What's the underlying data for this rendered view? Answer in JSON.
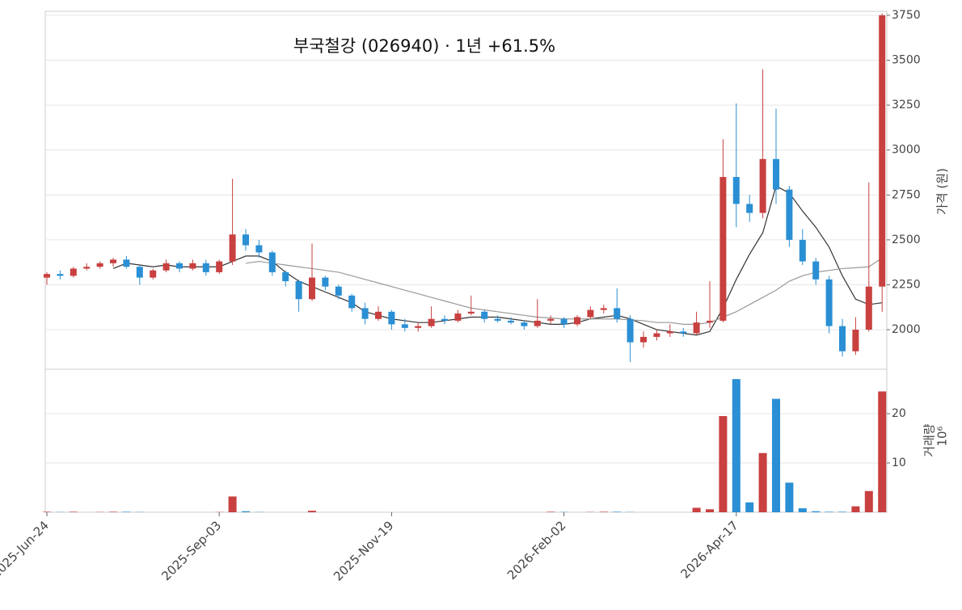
{
  "chart_data": [
    {
      "type": "candlestick",
      "title": "부국철강 (026940)  ·  1년 +61.5%",
      "ylabel": "가격 (원)",
      "categories": [
        "2025-Jun-24",
        null,
        null,
        null,
        null,
        null,
        null,
        null,
        null,
        null,
        null,
        null,
        null,
        "2025-Sep-03",
        null,
        null,
        null,
        null,
        null,
        null,
        null,
        null,
        null,
        null,
        null,
        null,
        "2025-Nov-19",
        null,
        null,
        null,
        null,
        null,
        null,
        null,
        null,
        null,
        null,
        null,
        null,
        "2026-Feb-02",
        null,
        null,
        null,
        null,
        null,
        null,
        null,
        null,
        null,
        null,
        null,
        null,
        "2026-Apr-17",
        null,
        null,
        null,
        null,
        null,
        null,
        null,
        null,
        null,
        null,
        null
      ],
      "open": [
        2290,
        2310,
        2300,
        2340,
        2350,
        2370,
        2390,
        2350,
        2290,
        2330,
        2370,
        2340,
        2370,
        2320,
        2380,
        2530,
        2470,
        2430,
        2320,
        2270,
        2170,
        2290,
        2240,
        2190,
        2120,
        2060,
        2100,
        2030,
        2010,
        2020,
        2060,
        2050,
        2090,
        2100,
        2060,
        2050,
        2040,
        2020,
        2050,
        2060,
        2030,
        2070,
        2110,
        2120,
        2060,
        1930,
        1960,
        1980,
        1990,
        1980,
        2040,
        2050,
        2850,
        2700,
        2650,
        2950,
        2780,
        2500,
        2380,
        2280,
        2020,
        1880,
        2000,
        2240
      ],
      "high": [
        2320,
        2330,
        2350,
        2370,
        2380,
        2400,
        2410,
        2360,
        2340,
        2390,
        2380,
        2390,
        2390,
        2390,
        2840,
        2560,
        2500,
        2440,
        2330,
        2280,
        2480,
        2300,
        2250,
        2200,
        2150,
        2130,
        2110,
        2060,
        2040,
        2130,
        2080,
        2110,
        2190,
        2110,
        2080,
        2070,
        2050,
        2170,
        2080,
        2070,
        2080,
        2130,
        2140,
        2230,
        2080,
        1990,
        2000,
        2030,
        2010,
        2100,
        2270,
        3060,
        3260,
        2750,
        3450,
        3230,
        2800,
        2560,
        2400,
        2300,
        2060,
        2070,
        2820,
        3760
      ],
      "low": [
        2250,
        2280,
        2290,
        2330,
        2340,
        2350,
        2340,
        2250,
        2280,
        2320,
        2320,
        2330,
        2300,
        2310,
        2360,
        2440,
        2400,
        2300,
        2240,
        2100,
        2160,
        2220,
        2170,
        2100,
        2030,
        2050,
        2000,
        1990,
        1990,
        2010,
        2030,
        2040,
        2080,
        2040,
        2040,
        2030,
        2000,
        2010,
        2030,
        2010,
        2020,
        2060,
        2090,
        2040,
        1820,
        1900,
        1940,
        1960,
        1960,
        1970,
        2010,
        2040,
        2570,
        2600,
        2620,
        2700,
        2460,
        2360,
        2250,
        1980,
        1850,
        1860,
        1990,
        2100
      ],
      "close": [
        2310,
        2300,
        2340,
        2350,
        2370,
        2390,
        2350,
        2290,
        2330,
        2370,
        2340,
        2370,
        2320,
        2380,
        2530,
        2470,
        2430,
        2320,
        2270,
        2170,
        2290,
        2240,
        2190,
        2120,
        2060,
        2100,
        2030,
        2010,
        2020,
        2060,
        2050,
        2090,
        2100,
        2060,
        2050,
        2040,
        2020,
        2050,
        2060,
        2030,
        2070,
        2110,
        2120,
        2060,
        1930,
        1960,
        1980,
        1990,
        1980,
        2040,
        2050,
        2850,
        2700,
        2650,
        2950,
        2780,
        2500,
        2380,
        2280,
        2020,
        1880,
        2000,
        2240,
        3750
      ],
      "up_color": "#c8403f",
      "down_color": "#2a8fd4",
      "series": [
        {
          "color": "#333333",
          "values": [
            null,
            null,
            null,
            null,
            null,
            2340,
            2370,
            2360,
            2350,
            2360,
            2350,
            2350,
            2350,
            2350,
            2380,
            2410,
            2410,
            2380,
            2320,
            2270,
            2240,
            2210,
            2180,
            2150,
            2100,
            2080,
            2060,
            2050,
            2040,
            2040,
            2050,
            2060,
            2070,
            2070,
            2070,
            2060,
            2050,
            2040,
            2030,
            2030,
            2040,
            2060,
            2070,
            2080,
            2060,
            2030,
            2000,
            1990,
            1980,
            1970,
            1990,
            2120,
            2280,
            2420,
            2540,
            2800,
            2760,
            2660,
            2570,
            2460,
            2300,
            2170,
            2140,
            2150
          ]
        },
        {
          "color": "#999999",
          "values": [
            null,
            null,
            null,
            null,
            null,
            null,
            null,
            null,
            null,
            null,
            null,
            null,
            null,
            null,
            null,
            2370,
            2380,
            2370,
            2360,
            2350,
            2340,
            2330,
            2320,
            2300,
            2280,
            2260,
            2240,
            2220,
            2200,
            2180,
            2160,
            2140,
            2120,
            2110,
            2100,
            2090,
            2080,
            2070,
            2065,
            2060,
            2060,
            2060,
            2060,
            2060,
            2055,
            2050,
            2040,
            2040,
            2030,
            2030,
            2040,
            2070,
            2100,
            2140,
            2180,
            2220,
            2270,
            2300,
            2320,
            2330,
            2340,
            2345,
            2350,
            2400
          ]
        }
      ],
      "ylim": [
        1780,
        3772
      ],
      "yticks": [
        2000,
        2250,
        2500,
        2750,
        3000,
        3250,
        3500,
        3750
      ],
      "grid": true
    },
    {
      "type": "bar",
      "ylabel": "거래량",
      "unit": "10⁶",
      "values": [
        0.1,
        0.05,
        0.1,
        0,
        0.05,
        0.1,
        0.1,
        0.05,
        0,
        0,
        0,
        0,
        0,
        0.05,
        3.2,
        0.2,
        0.05,
        0,
        0,
        0,
        0.3,
        0,
        0,
        0,
        0,
        0,
        0,
        0,
        0,
        0,
        0,
        0,
        0,
        0,
        0,
        0,
        0,
        0,
        0.1,
        0.05,
        0,
        0.05,
        0.1,
        0.1,
        0.05,
        0,
        0,
        0,
        0,
        0.9,
        0.6,
        19.5,
        27,
        2,
        12,
        23,
        6,
        0.8,
        0.2,
        0.1,
        0.1,
        1.2,
        4.3,
        24.5
      ],
      "ylim": [
        0,
        29
      ],
      "yticks": [
        10,
        20
      ],
      "grid": true
    }
  ]
}
